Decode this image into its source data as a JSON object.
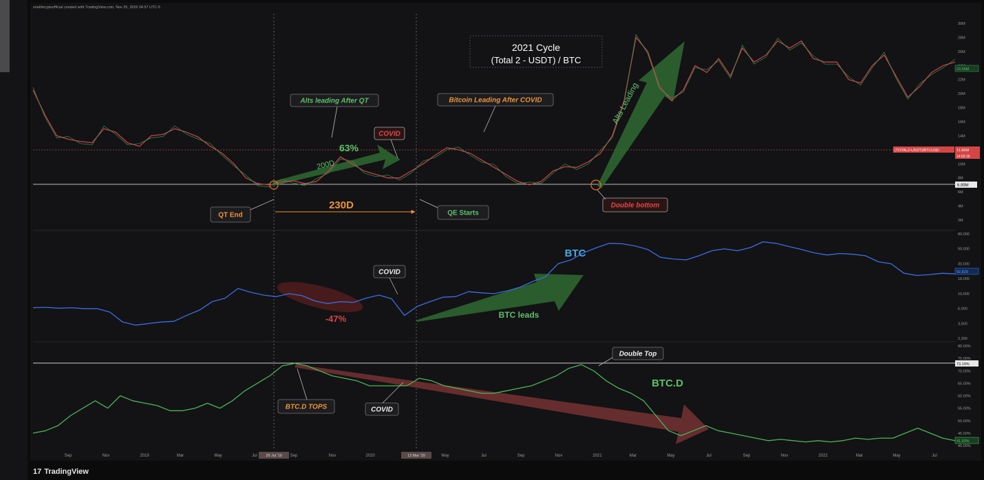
{
  "header": {
    "attribution": "oneliferyptsofficial created with TradingView.com, Nov 25, 2025 04:57 UTC-5"
  },
  "footer": {
    "logo_mark": "17",
    "logo_text": "TradingView"
  },
  "chart_data": [
    {
      "type": "line",
      "title": "2021 Cycle\n(Total 2 - USDT) / BTC",
      "title_line1": "2021 Cycle",
      "title_line2": "(Total 2 - USDT) / BTC",
      "ylim": [
        1,
        31
      ],
      "ytick_labels": [
        "30M",
        "28M",
        "26M",
        "24M",
        "22M",
        "20M",
        "18M",
        "16M",
        "14M",
        "12M",
        "10M",
        "8M",
        "6M",
        "4M",
        "2M"
      ],
      "price_badge": "6.99M",
      "series_badge_top": "(TOTAL2-USDT)/BTCUSD",
      "series_badge_value": "11.66M",
      "series_badge_sub": "14:02:18",
      "current_badge": "23.56M",
      "annotations": {
        "alts_after_qt": "Alts leading After QT",
        "btc_after_covid": "Bitcoin Leading After COVID",
        "covid": "COVID",
        "pct_63": "63%",
        "d200": "200D",
        "alts_leading": "Alts Leading",
        "qt_end": "QT End",
        "d230": "230D",
        "qe_starts": "QE Starts",
        "double_bottom": "Double bottom"
      },
      "series": [
        {
          "values": [
            20.5,
            17,
            14,
            13.5,
            13.2,
            13,
            15,
            14.5,
            13,
            12.5,
            14,
            14.2,
            15,
            14.5,
            13.8,
            12.5,
            11.5,
            10,
            8,
            7.2,
            7,
            7.4,
            7.6,
            7.2,
            7.5,
            9,
            11,
            10,
            9,
            8.5,
            8,
            8,
            9,
            10,
            11.2,
            12.3,
            12,
            11.5,
            10.5,
            9.5,
            8.5,
            7.5,
            7,
            7.5,
            9,
            9.6,
            9.5,
            10.3,
            11.5,
            14,
            19,
            28,
            26,
            21,
            19,
            20.5,
            24,
            23,
            25,
            22.5,
            26.5,
            24.5,
            25.5,
            27.5,
            26.5,
            27.5,
            25,
            24.5,
            24.5,
            22,
            21.5,
            24,
            25.5,
            22.5,
            19.5,
            21,
            23,
            24,
            24.5
          ]
        }
      ]
    },
    {
      "type": "line",
      "ylim": [
        2300,
        80000
      ],
      "log_scale": true,
      "ytick_labels": [
        "80,000",
        "50,000",
        "30,000",
        "18,000",
        "10,000",
        "6,000",
        "3,500",
        "2,300"
      ],
      "current_badge": "92,829",
      "annotations": {
        "covid": "COVID",
        "pct_47": "-47%",
        "btc": "BTC",
        "btc_leads": "BTC leads"
      },
      "series": [
        {
          "values": [
            6500,
            6600,
            6400,
            6500,
            6300,
            6300,
            5600,
            4000,
            3600,
            3800,
            4000,
            4100,
            5000,
            6000,
            8000,
            9000,
            12500,
            11000,
            10000,
            9500,
            10500,
            9800,
            8200,
            7500,
            8000,
            7800,
            9000,
            10000,
            8800,
            5000,
            6800,
            8000,
            9300,
            9500,
            11200,
            10800,
            10500,
            11500,
            13000,
            15800,
            18500,
            29000,
            33000,
            42000,
            50000,
            58000,
            57000,
            53000,
            47000,
            36000,
            34000,
            33000,
            38000,
            45000,
            48000,
            45000,
            50000,
            61000,
            58000,
            52000,
            47000,
            42000,
            39000,
            41000,
            40000,
            38000,
            31000,
            29000,
            21000,
            19500,
            20000,
            21000,
            20500
          ]
        }
      ]
    },
    {
      "type": "line",
      "ylim": [
        40,
        80
      ],
      "ytick_labels": [
        "80.00%",
        "75.00%",
        "70.00%",
        "65.00%",
        "60.00%",
        "55.00%",
        "50.00%",
        "45.00%",
        "40.00%"
      ],
      "current_badge": "73.19%",
      "last_badge": "41.93%",
      "x_tick_labels": [
        "Sep",
        "Nov",
        "2019",
        "Mar",
        "May",
        "Jul",
        "Sep",
        "Nov",
        "2020",
        "May",
        "Jul",
        "Sep",
        "Nov",
        "2021",
        "Mar",
        "May",
        "Jul",
        "Sep",
        "Nov",
        "2022",
        "Mar",
        "May",
        "Jul"
      ],
      "x_highlight_1": "29 Jul '19",
      "x_highlight_2": "13 Mar '20",
      "annotations": {
        "double_top": "Double Top",
        "btcd": "BTC.D",
        "btcd_tops": "BTC.D TOPS",
        "covid": "COVID"
      },
      "series": [
        {
          "values": [
            45,
            46,
            48,
            52,
            55,
            58,
            55,
            60,
            58,
            57,
            56,
            54,
            54,
            55,
            57,
            55,
            58,
            62,
            65,
            68,
            72,
            73,
            72,
            70,
            68,
            67,
            66,
            64,
            64,
            64,
            64,
            67,
            66,
            64,
            63,
            62,
            61,
            61,
            62,
            63,
            64,
            66,
            68,
            71,
            72.5,
            70,
            66,
            63,
            61,
            58,
            52,
            46,
            44,
            46,
            48,
            46,
            45,
            44,
            43,
            42,
            42.5,
            42,
            41.5,
            42,
            41.5,
            42,
            43,
            42.5,
            43,
            43,
            45,
            47,
            45,
            43,
            42
          ]
        }
      ]
    }
  ]
}
